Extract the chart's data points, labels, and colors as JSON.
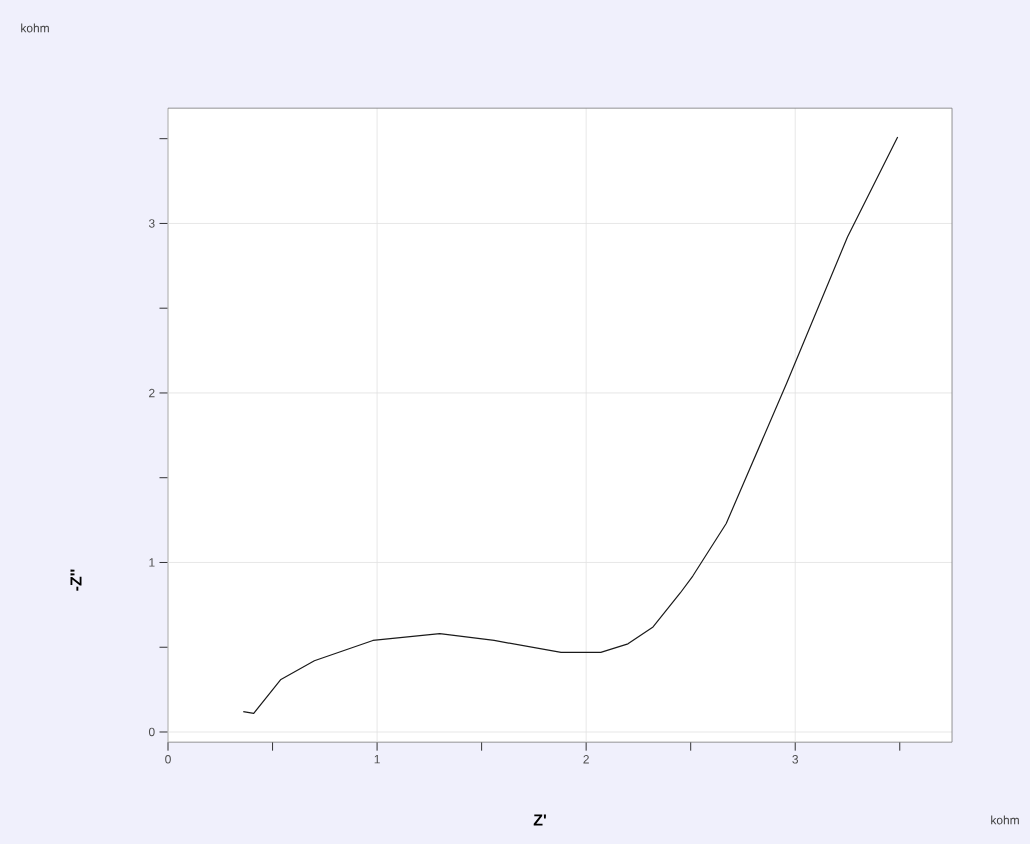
{
  "chart_data": {
    "type": "line",
    "xlabel": "Z'",
    "ylabel": "-Z''",
    "annotations": [
      "kohm",
      "kohm"
    ],
    "x": [
      0.36,
      0.41,
      0.54,
      0.7,
      0.98,
      1.3,
      1.56,
      1.88,
      2.07,
      2.2,
      2.32,
      2.45,
      2.51,
      2.67,
      2.74,
      2.96,
      3.25,
      3.49
    ],
    "series": [
      {
        "color": "#1a1a1a",
        "values": [
          0.12,
          0.11,
          0.31,
          0.42,
          0.54,
          0.58,
          0.54,
          0.47,
          0.47,
          0.52,
          0.62,
          0.82,
          0.92,
          1.23,
          1.43,
          2.06,
          2.92,
          3.51
        ]
      }
    ],
    "xlim": [
      0,
      3.75
    ],
    "ylim": [
      -0.06,
      3.68
    ],
    "xticks": [
      0,
      {
        "value": 0.5,
        "label": null
      },
      1,
      {
        "value": 1.5,
        "label": null
      },
      2,
      {
        "value": 2.5,
        "label": null
      },
      3,
      {
        "value": 3.5,
        "label": null
      }
    ],
    "yticks": [
      0,
      {
        "value": 0.5,
        "label": null
      },
      1,
      {
        "value": 1.5,
        "label": null
      },
      2,
      {
        "value": 2.5,
        "label": null
      },
      3,
      {
        "value": 3.5,
        "label": null
      }
    ],
    "grid": true,
    "marker": "none",
    "line_style": "solid",
    "legend": false
  }
}
